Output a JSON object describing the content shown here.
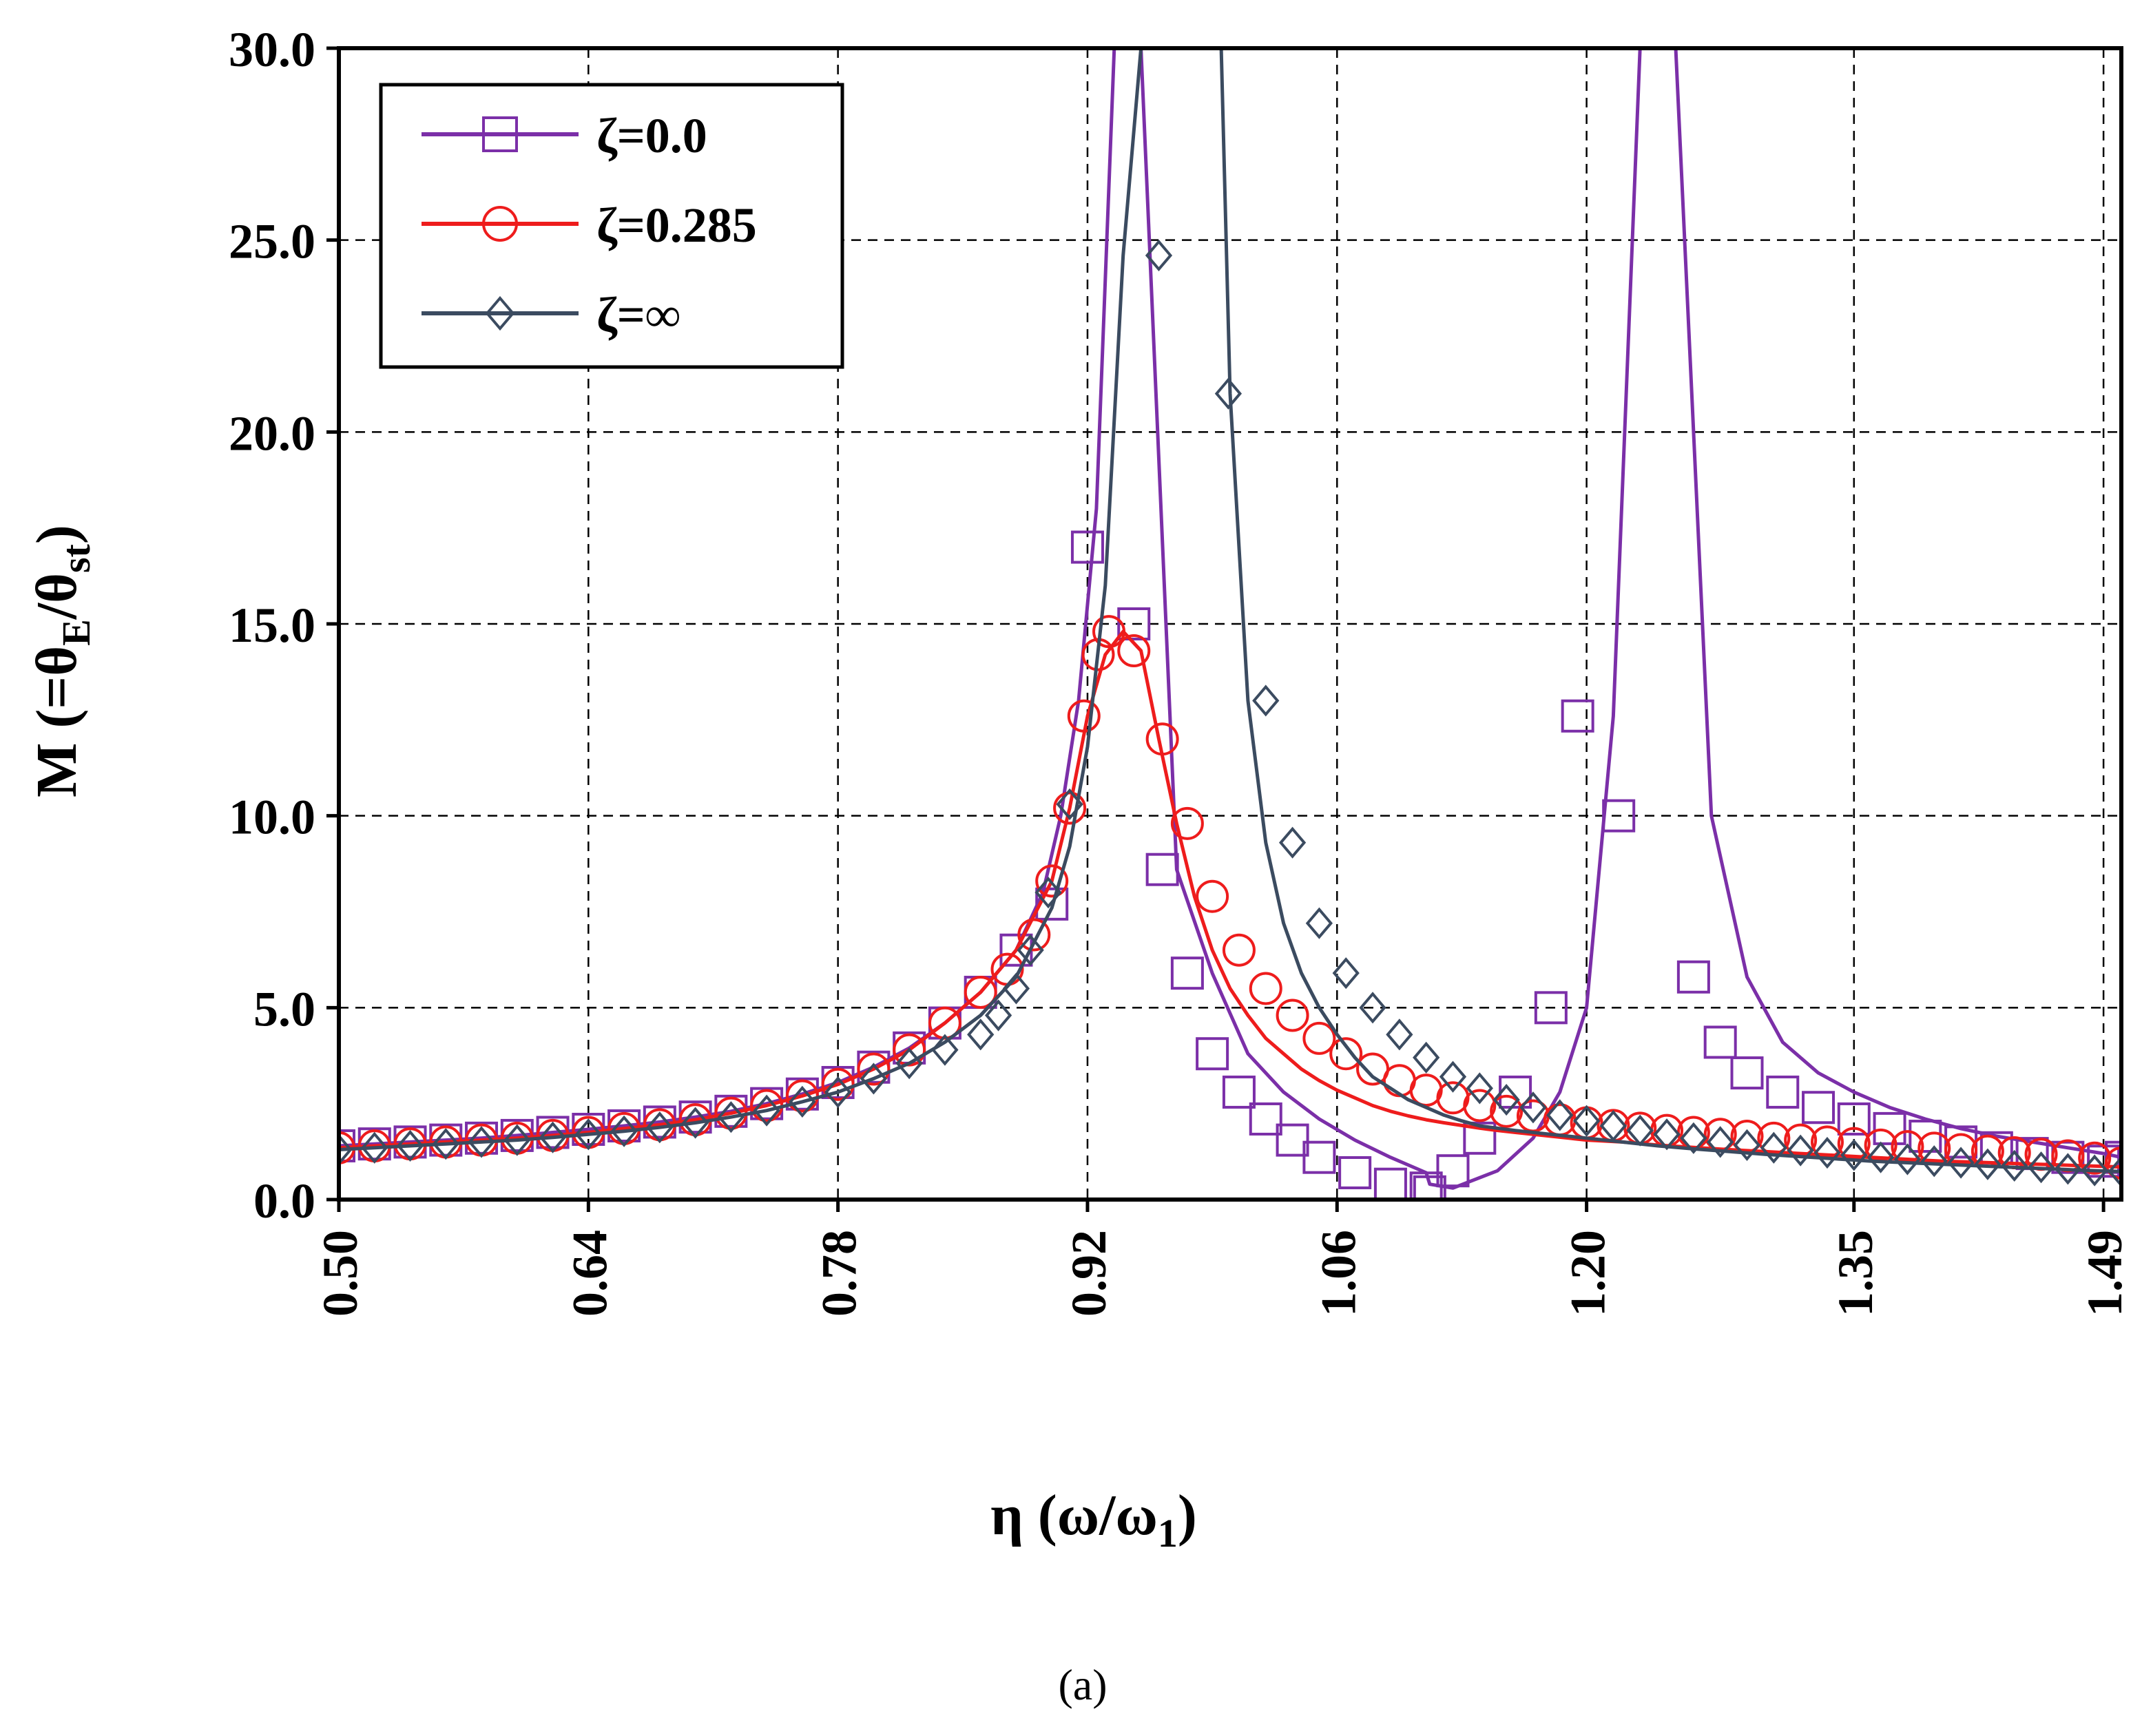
{
  "figure": {
    "panel_label": "(a)"
  },
  "chart_data": {
    "type": "line",
    "title": "",
    "xlabel": "η (ω/ω1)",
    "ylabel": "M (=θE/θst)",
    "xlabel_parts": {
      "main": "η (ω/ω",
      "sub": "1",
      "tail": ")"
    },
    "ylabel_parts": {
      "p1": "M (=θ",
      "s1": "E",
      "p2": "/θ",
      "s2": "st",
      "p3": ")"
    },
    "xlim": [
      0.5,
      1.5
    ],
    "ylim": [
      0,
      30
    ],
    "x_ticks": [
      0.5,
      0.64,
      0.78,
      0.92,
      1.06,
      1.2,
      1.35,
      1.49
    ],
    "x_tick_labels": [
      "0.50",
      "0.64",
      "0.78",
      "0.92",
      "1.06",
      "1.20",
      "1.35",
      "1.49"
    ],
    "y_ticks": [
      0,
      5,
      10,
      15,
      20,
      25,
      30
    ],
    "y_tick_labels": [
      "0.0",
      "5.0",
      "10.0",
      "15.0",
      "20.0",
      "25.0",
      "30.0"
    ],
    "grid": true,
    "legend_position": "top-left",
    "series": [
      {
        "name": "ζ=0.0",
        "color": "#7b2fa8",
        "marker": "square",
        "x": [
          0.5,
          0.52,
          0.54,
          0.56,
          0.58,
          0.6,
          0.62,
          0.64,
          0.66,
          0.68,
          0.7,
          0.72,
          0.74,
          0.76,
          0.78,
          0.8,
          0.82,
          0.84,
          0.86,
          0.88,
          0.895,
          0.905,
          0.915,
          0.925,
          0.935,
          0.95,
          0.97,
          0.99,
          1.01,
          1.03,
          1.05,
          1.07,
          1.09,
          1.11,
          1.112,
          1.125,
          1.15,
          1.17,
          1.185,
          1.2,
          1.215,
          1.23,
          1.25,
          1.27,
          1.29,
          1.31,
          1.33,
          1.35,
          1.37,
          1.39,
          1.41,
          1.43,
          1.45,
          1.47,
          1.49,
          1.5
        ],
        "y": [
          1.4,
          1.45,
          1.5,
          1.55,
          1.6,
          1.67,
          1.75,
          1.83,
          1.92,
          2.02,
          2.15,
          2.3,
          2.5,
          2.75,
          3.05,
          3.45,
          3.95,
          4.6,
          5.4,
          6.5,
          8.0,
          10.0,
          13.0,
          18.0,
          30.0,
          30.0,
          8.6,
          5.9,
          3.8,
          2.8,
          2.1,
          1.55,
          1.1,
          0.7,
          0.4,
          0.3,
          0.75,
          1.6,
          2.8,
          5.0,
          12.6,
          30.0,
          30.0,
          10.0,
          5.8,
          4.1,
          3.3,
          2.8,
          2.4,
          2.1,
          1.85,
          1.65,
          1.5,
          1.35,
          1.2,
          1.1
        ],
        "markers_x": [
          0.5,
          0.52,
          0.54,
          0.56,
          0.58,
          0.6,
          0.62,
          0.64,
          0.66,
          0.68,
          0.7,
          0.72,
          0.74,
          0.76,
          0.78,
          0.8,
          0.82,
          0.84,
          0.86,
          0.88,
          0.9,
          0.92,
          0.946,
          0.962,
          0.976,
          0.99,
          1.005,
          1.02,
          1.035,
          1.05,
          1.07,
          1.09,
          1.11,
          1.112,
          1.125,
          1.14,
          1.16,
          1.18,
          1.195,
          1.218,
          1.26,
          1.275,
          1.29,
          1.31,
          1.33,
          1.35,
          1.37,
          1.39,
          1.41,
          1.43,
          1.45,
          1.47,
          1.49,
          1.5
        ],
        "markers_y": [
          1.4,
          1.45,
          1.5,
          1.55,
          1.6,
          1.67,
          1.75,
          1.83,
          1.92,
          2.02,
          2.15,
          2.3,
          2.5,
          2.75,
          3.05,
          3.45,
          3.95,
          4.6,
          5.4,
          6.5,
          7.7,
          17.0,
          15.0,
          8.6,
          5.9,
          3.8,
          2.8,
          2.1,
          1.55,
          1.1,
          0.7,
          0.4,
          0.3,
          0.2,
          0.75,
          1.6,
          2.8,
          5.0,
          12.6,
          10.0,
          5.8,
          4.1,
          3.3,
          2.8,
          2.4,
          2.1,
          1.85,
          1.65,
          1.5,
          1.35,
          1.2,
          1.1,
          1.0,
          1.1
        ]
      },
      {
        "name": "ζ=0.285",
        "color": "#ee1c1c",
        "marker": "circle",
        "x": [
          0.5,
          0.52,
          0.54,
          0.56,
          0.58,
          0.6,
          0.62,
          0.64,
          0.66,
          0.68,
          0.7,
          0.72,
          0.74,
          0.76,
          0.78,
          0.8,
          0.82,
          0.84,
          0.86,
          0.88,
          0.9,
          0.91,
          0.92,
          0.93,
          0.94,
          0.95,
          0.96,
          0.97,
          0.98,
          0.99,
          1.0,
          1.01,
          1.02,
          1.03,
          1.04,
          1.05,
          1.06,
          1.07,
          1.08,
          1.09,
          1.1,
          1.11,
          1.12,
          1.13,
          1.14,
          1.15,
          1.16,
          1.17,
          1.18,
          1.19,
          1.2,
          1.22,
          1.24,
          1.26,
          1.28,
          1.3,
          1.32,
          1.34,
          1.36,
          1.38,
          1.4,
          1.42,
          1.44,
          1.46,
          1.48,
          1.5
        ],
        "y": [
          1.35,
          1.4,
          1.45,
          1.5,
          1.55,
          1.6,
          1.67,
          1.75,
          1.85,
          1.95,
          2.08,
          2.25,
          2.45,
          2.7,
          3.0,
          3.4,
          3.9,
          4.6,
          5.4,
          6.5,
          8.3,
          10.2,
          12.6,
          14.2,
          14.8,
          14.3,
          12.0,
          9.8,
          7.9,
          6.5,
          5.5,
          4.8,
          4.2,
          3.8,
          3.4,
          3.1,
          2.85,
          2.65,
          2.45,
          2.3,
          2.18,
          2.08,
          2.0,
          1.93,
          1.86,
          1.8,
          1.75,
          1.7,
          1.65,
          1.6,
          1.55,
          1.5,
          1.42,
          1.36,
          1.3,
          1.25,
          1.2,
          1.15,
          1.1,
          1.05,
          1.0,
          0.97,
          0.94,
          0.91,
          0.88,
          0.85
        ],
        "markers_x": [
          0.5,
          0.52,
          0.54,
          0.56,
          0.58,
          0.6,
          0.62,
          0.64,
          0.66,
          0.68,
          0.7,
          0.72,
          0.74,
          0.76,
          0.78,
          0.8,
          0.82,
          0.84,
          0.86,
          0.875,
          0.89,
          0.9,
          0.91,
          0.918,
          0.926,
          0.932,
          0.946,
          0.962,
          0.976,
          0.99,
          1.005,
          1.02,
          1.035,
          1.05,
          1.065,
          1.08,
          1.095,
          1.11,
          1.125,
          1.14,
          1.155,
          1.17,
          1.185,
          1.2,
          1.215,
          1.23,
          1.245,
          1.26,
          1.275,
          1.29,
          1.305,
          1.32,
          1.335,
          1.35,
          1.365,
          1.38,
          1.395,
          1.41,
          1.425,
          1.44,
          1.455,
          1.47,
          1.485,
          1.5
        ],
        "markers_y": [
          1.35,
          1.4,
          1.45,
          1.5,
          1.55,
          1.6,
          1.67,
          1.75,
          1.85,
          1.95,
          2.08,
          2.25,
          2.45,
          2.7,
          3.0,
          3.4,
          3.9,
          4.6,
          5.4,
          6.0,
          6.9,
          8.3,
          10.2,
          12.6,
          14.2,
          14.8,
          14.3,
          12.0,
          9.8,
          7.9,
          6.5,
          5.5,
          4.8,
          4.2,
          3.8,
          3.4,
          3.1,
          2.85,
          2.65,
          2.45,
          2.3,
          2.18,
          2.08,
          2.0,
          1.93,
          1.86,
          1.8,
          1.75,
          1.7,
          1.65,
          1.6,
          1.55,
          1.5,
          1.46,
          1.42,
          1.38,
          1.34,
          1.3,
          1.26,
          1.22,
          1.18,
          1.14,
          1.08,
          0.95
        ]
      },
      {
        "name": "ζ=∞",
        "color": "#3b4b60",
        "marker": "diamond",
        "x": [
          0.5,
          0.52,
          0.54,
          0.56,
          0.58,
          0.6,
          0.62,
          0.64,
          0.66,
          0.68,
          0.7,
          0.72,
          0.74,
          0.76,
          0.78,
          0.8,
          0.82,
          0.84,
          0.86,
          0.88,
          0.9,
          0.91,
          0.92,
          0.93,
          0.94,
          0.95,
          0.955,
          0.96,
          0.97,
          0.99,
          0.995,
          1.0,
          1.01,
          1.02,
          1.03,
          1.04,
          1.05,
          1.06,
          1.07,
          1.08,
          1.09,
          1.1,
          1.11,
          1.12,
          1.13,
          1.14,
          1.16,
          1.18,
          1.2,
          1.22,
          1.24,
          1.26,
          1.28,
          1.3,
          1.32,
          1.34,
          1.36,
          1.38,
          1.4,
          1.42,
          1.44,
          1.46,
          1.48,
          1.5
        ],
        "y": [
          1.3,
          1.35,
          1.4,
          1.45,
          1.5,
          1.55,
          1.62,
          1.7,
          1.78,
          1.88,
          2.0,
          2.15,
          2.32,
          2.55,
          2.8,
          3.15,
          3.55,
          4.1,
          4.8,
          5.8,
          7.6,
          9.2,
          11.8,
          16.0,
          24.6,
          30.0,
          30.0,
          30.0,
          30.0,
          30.0,
          30.0,
          21.0,
          13.0,
          9.3,
          7.2,
          5.9,
          5.0,
          4.3,
          3.7,
          3.2,
          2.9,
          2.6,
          2.4,
          2.2,
          2.05,
          1.92,
          1.8,
          1.7,
          1.6,
          1.5,
          1.4,
          1.32,
          1.25,
          1.18,
          1.12,
          1.06,
          1.0,
          0.96,
          0.92,
          0.88,
          0.84,
          0.8,
          0.76,
          0.73
        ],
        "markers_x": [
          0.5,
          0.52,
          0.54,
          0.56,
          0.58,
          0.6,
          0.62,
          0.64,
          0.66,
          0.68,
          0.7,
          0.72,
          0.74,
          0.76,
          0.78,
          0.8,
          0.82,
          0.84,
          0.86,
          0.87,
          0.88,
          0.888,
          0.898,
          0.91,
          0.96,
          0.999,
          1.02,
          1.035,
          1.05,
          1.065,
          1.08,
          1.095,
          1.11,
          1.125,
          1.14,
          1.155,
          1.17,
          1.185,
          1.2,
          1.215,
          1.23,
          1.245,
          1.26,
          1.275,
          1.29,
          1.305,
          1.32,
          1.335,
          1.35,
          1.365,
          1.38,
          1.395,
          1.41,
          1.425,
          1.44,
          1.455,
          1.47,
          1.485,
          1.5
        ],
        "markers_y": [
          1.3,
          1.35,
          1.4,
          1.45,
          1.5,
          1.55,
          1.62,
          1.7,
          1.78,
          1.88,
          2.0,
          2.15,
          2.32,
          2.55,
          2.8,
          3.15,
          3.55,
          3.9,
          4.3,
          4.8,
          5.5,
          6.5,
          8.0,
          10.3,
          24.6,
          21.0,
          13.0,
          9.3,
          7.2,
          5.9,
          5.0,
          4.3,
          3.7,
          3.2,
          2.9,
          2.6,
          2.4,
          2.2,
          2.05,
          1.92,
          1.8,
          1.7,
          1.6,
          1.5,
          1.42,
          1.35,
          1.28,
          1.22,
          1.16,
          1.1,
          1.05,
          1.0,
          0.96,
          0.92,
          0.88,
          0.84,
          0.8,
          0.76,
          0.73
        ]
      }
    ]
  }
}
